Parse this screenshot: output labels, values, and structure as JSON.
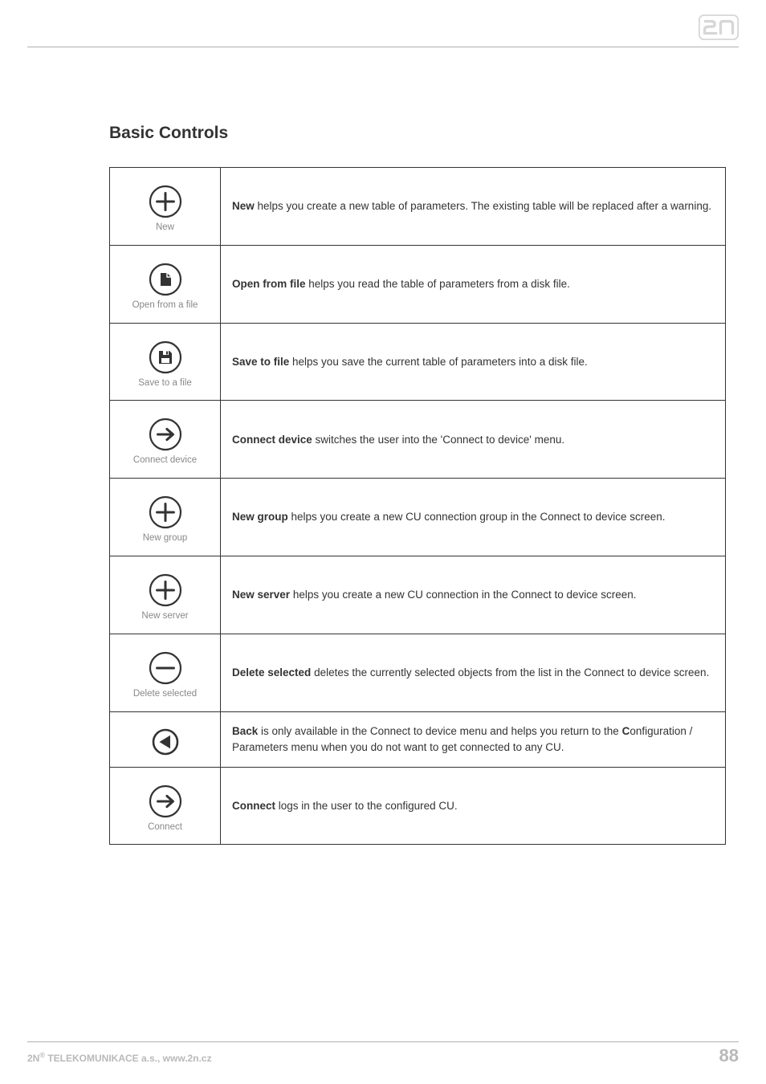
{
  "heading": "Basic Controls",
  "rows": [
    {
      "icon": "plus-circle",
      "label": "New",
      "desc_bold": "New",
      "desc_rest": " helps you create a new table of parameters. The existing table will be replaced after a warning."
    },
    {
      "icon": "file-open",
      "label": "Open from a file",
      "desc_bold": "Open from file",
      "desc_rest": " helps you read the table of parameters from a disk file."
    },
    {
      "icon": "floppy-circle",
      "label": "Save to a file",
      "desc_bold": "Save to file",
      "desc_rest": " helps you save the current table of parameters into a disk file."
    },
    {
      "icon": "arrow-right-circle",
      "label": "Connect device",
      "desc_bold": "Connect device",
      "desc_rest": " switches the user into the 'Connect to device' menu."
    },
    {
      "icon": "plus-circle",
      "label": "New group",
      "desc_bold": "New group",
      "desc_rest": " helps you create a new CU connection group in the Connect to device screen."
    },
    {
      "icon": "plus-circle",
      "label": "New server",
      "desc_bold": "New server",
      "desc_rest": " helps you create a new CU connection in the Connect to device screen."
    },
    {
      "icon": "minus-circle",
      "label": "Delete selected",
      "desc_bold": "Delete selected",
      "desc_rest": " deletes the currently selected objects from the list in the Connect to device screen."
    },
    {
      "icon": "arrow-left-circle-filled",
      "label": "",
      "desc_bold": "Back",
      "desc_mid": " is only available in the Connect to device menu and helps you return to the ",
      "desc_bold2": "C",
      "desc_rest": "onfiguration / Parameters menu when you do not want to get connected to any CU."
    },
    {
      "icon": "arrow-right-circle",
      "label": "Connect",
      "desc_bold": "Connect",
      "desc_rest": " logs in the user to the configured CU."
    }
  ],
  "footer_left_prefix": "2N",
  "footer_left_sup": "®",
  "footer_left_rest": " TELEKOMUNIKACE a.s., www.2n.cz",
  "page_number": "88",
  "colors": {
    "icon_stroke": "#333333",
    "icon_label": "#888888",
    "text": "#333333",
    "rule": "#b0b0b0",
    "footer": "#b9b9b9",
    "logo": "#d6d6d6"
  }
}
